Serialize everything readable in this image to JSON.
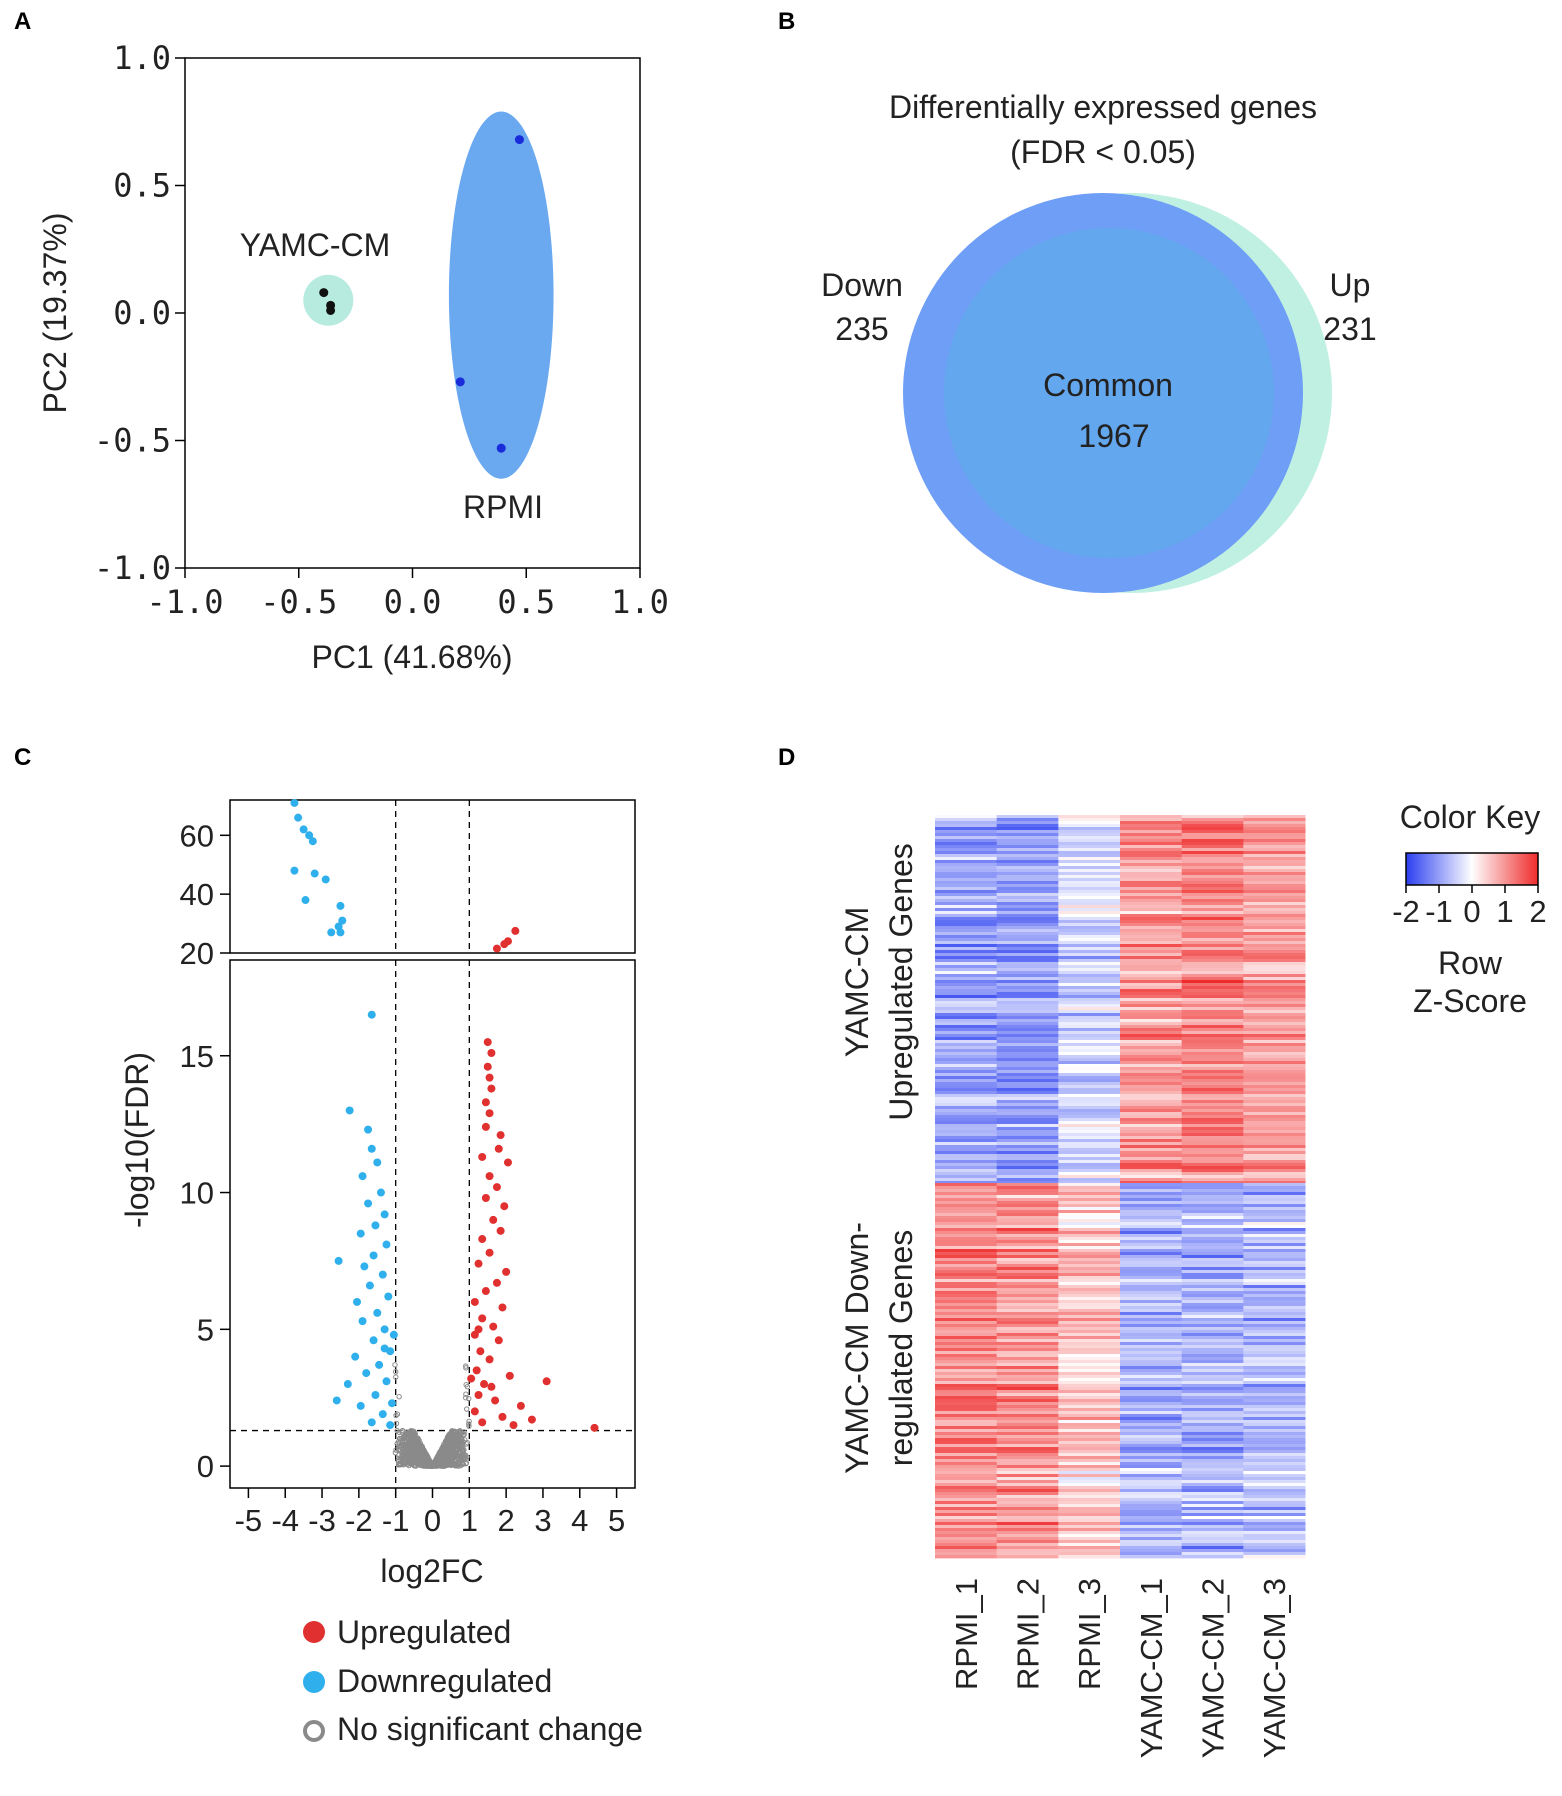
{
  "panels": {
    "a": "A",
    "b": "B",
    "c": "C",
    "d": "D"
  },
  "colors": {
    "rpmi_ellipse": "#6aa8f0",
    "yamc_circle": "#b7ebdf",
    "rpmi_point": "#1a2bd9",
    "yamc_point": "#111111",
    "venn_left": "#6e9ef5",
    "venn_right": "#bff0e2",
    "venn_common": "#63a7ee",
    "up": "#e0302f",
    "down": "#2fb0ec",
    "ns": "#8a8a8a",
    "heat_low": "#2b3ff0",
    "heat_mid": "#ffffff",
    "heat_high": "#ef2b2b"
  },
  "chart_data": [
    {
      "id": "pca",
      "type": "scatter",
      "title": "",
      "xlabel": "PC1 (41.68%)",
      "ylabel": "PC2 (19.37%)",
      "xlim": [
        -1.0,
        1.0
      ],
      "ylim": [
        -1.0,
        1.0
      ],
      "xticks": [
        -1.0,
        -0.5,
        0.0,
        0.5,
        1.0
      ],
      "xtick_labels": [
        "-1.0",
        "-0.5",
        "0.0",
        "0.5",
        "1.0"
      ],
      "yticks": [
        -1.0,
        -0.5,
        0.0,
        0.5,
        1.0
      ],
      "ytick_labels": [
        "-1.0",
        "-0.5",
        "0.0",
        "0.5",
        "1.0"
      ],
      "series": [
        {
          "name": "YAMC-CM",
          "label": "YAMC-CM",
          "points": [
            [
              -0.39,
              0.08
            ],
            [
              -0.36,
              0.03
            ],
            [
              -0.36,
              0.01
            ]
          ],
          "region": {
            "cx": -0.37,
            "cy": 0.05,
            "rx": 0.11,
            "ry": 0.1
          }
        },
        {
          "name": "RPMI",
          "label": "RPMI",
          "points": [
            [
              0.47,
              0.68
            ],
            [
              0.21,
              -0.27
            ],
            [
              0.39,
              -0.53
            ]
          ],
          "region": {
            "cx": 0.39,
            "cy": 0.07,
            "rx": 0.23,
            "ry": 0.72
          }
        }
      ]
    },
    {
      "id": "venn",
      "type": "venn",
      "title_line1": "Differentially expressed genes",
      "title_line2": "(FDR < 0.05)",
      "sets": [
        {
          "name": "Down",
          "label": "Down",
          "count": "235"
        },
        {
          "name": "Up",
          "label": "Up",
          "count": "231"
        }
      ],
      "common_label": "Common",
      "common_count": "1967"
    },
    {
      "id": "volcano",
      "type": "scatter",
      "xlabel": "log2FC",
      "ylabel": "-log10(FDR)",
      "xlim": [
        -5.5,
        5.5
      ],
      "ylim_lower": [
        -0.8,
        18.5
      ],
      "ylim_upper": [
        20,
        72
      ],
      "xticks": [
        -5,
        -4,
        -3,
        -2,
        -1,
        0,
        1,
        2,
        3,
        4,
        5
      ],
      "xtick_labels": [
        "-5",
        "-4",
        "-3",
        "-2",
        "-1",
        "0",
        "1",
        "2",
        "3",
        "4",
        "5"
      ],
      "yticks_lower": [
        0,
        5,
        10,
        15
      ],
      "ytick_labels_lower": [
        "0",
        "5",
        "10",
        "15"
      ],
      "yticks_upper": [
        20,
        40,
        60
      ],
      "ytick_labels_upper": [
        "20",
        "40",
        "60"
      ],
      "fc_thresholds": [
        -1,
        1
      ],
      "fdr_threshold": 1.3,
      "legend": [
        {
          "name": "up",
          "label": "Upregulated"
        },
        {
          "name": "down",
          "label": "Downregulated"
        },
        {
          "name": "ns",
          "label": "No significant change"
        }
      ],
      "upregulated": [
        [
          1.5,
          15.5
        ],
        [
          1.6,
          15.1
        ],
        [
          1.5,
          14.6
        ],
        [
          1.55,
          14.2
        ],
        [
          1.6,
          13.8
        ],
        [
          1.45,
          13.3
        ],
        [
          1.55,
          12.9
        ],
        [
          1.45,
          12.4
        ],
        [
          1.85,
          12.1
        ],
        [
          1.8,
          11.6
        ],
        [
          1.35,
          11.3
        ],
        [
          2.05,
          11.1
        ],
        [
          1.55,
          10.6
        ],
        [
          1.75,
          10.2
        ],
        [
          1.45,
          9.8
        ],
        [
          1.95,
          9.5
        ],
        [
          1.65,
          9.0
        ],
        [
          1.85,
          8.6
        ],
        [
          1.35,
          8.3
        ],
        [
          1.55,
          7.8
        ],
        [
          1.25,
          7.4
        ],
        [
          2.0,
          7.1
        ],
        [
          1.75,
          6.7
        ],
        [
          1.45,
          6.4
        ],
        [
          1.15,
          6.0
        ],
        [
          1.9,
          5.8
        ],
        [
          1.35,
          5.4
        ],
        [
          1.65,
          5.1
        ],
        [
          1.15,
          4.8
        ],
        [
          1.8,
          4.6
        ],
        [
          1.3,
          4.2
        ],
        [
          1.55,
          3.9
        ],
        [
          1.2,
          3.5
        ],
        [
          2.1,
          3.3
        ],
        [
          1.4,
          3.0
        ],
        [
          3.1,
          3.1
        ],
        [
          1.25,
          2.6
        ],
        [
          1.7,
          2.4
        ],
        [
          2.4,
          2.2
        ],
        [
          1.15,
          2.0
        ],
        [
          1.9,
          1.8
        ],
        [
          2.7,
          1.7
        ],
        [
          1.35,
          1.6
        ],
        [
          2.2,
          1.5
        ],
        [
          4.4,
          1.4
        ],
        [
          1.6,
          2.9
        ],
        [
          1.05,
          3.2
        ],
        [
          1.25,
          5.0
        ]
      ],
      "upregulated_upper": [
        [
          2.25,
          27.5
        ],
        [
          2.05,
          24.0
        ],
        [
          1.95,
          23.0
        ],
        [
          1.75,
          21.5
        ]
      ],
      "downregulated": [
        [
          -1.65,
          16.5
        ],
        [
          -2.25,
          13.0
        ],
        [
          -1.75,
          12.3
        ],
        [
          -1.65,
          11.6
        ],
        [
          -1.5,
          11.1
        ],
        [
          -1.9,
          10.6
        ],
        [
          -1.4,
          10.0
        ],
        [
          -1.75,
          9.6
        ],
        [
          -1.3,
          9.2
        ],
        [
          -1.55,
          8.8
        ],
        [
          -1.95,
          8.5
        ],
        [
          -1.25,
          8.1
        ],
        [
          -1.6,
          7.7
        ],
        [
          -1.85,
          7.3
        ],
        [
          -2.55,
          7.5
        ],
        [
          -1.35,
          7.0
        ],
        [
          -1.7,
          6.6
        ],
        [
          -1.2,
          6.2
        ],
        [
          -2.05,
          6.0
        ],
        [
          -1.5,
          5.6
        ],
        [
          -1.9,
          5.3
        ],
        [
          -1.3,
          5.0
        ],
        [
          -1.6,
          4.6
        ],
        [
          -1.15,
          4.2
        ],
        [
          -2.1,
          4.0
        ],
        [
          -1.45,
          3.7
        ],
        [
          -1.8,
          3.4
        ],
        [
          -1.25,
          3.1
        ],
        [
          -2.3,
          3.0
        ],
        [
          -1.55,
          2.6
        ],
        [
          -1.1,
          2.3
        ],
        [
          -1.95,
          2.2
        ],
        [
          -1.35,
          1.9
        ],
        [
          -2.6,
          2.4
        ],
        [
          -1.65,
          1.6
        ],
        [
          -1.15,
          1.5
        ],
        [
          -1.05,
          4.8
        ],
        [
          -1.3,
          4.3
        ]
      ],
      "downregulated_upper": [
        [
          -3.75,
          71
        ],
        [
          -3.65,
          66
        ],
        [
          -3.5,
          62
        ],
        [
          -3.35,
          60
        ],
        [
          -3.25,
          58
        ],
        [
          -3.75,
          48
        ],
        [
          -3.2,
          47
        ],
        [
          -2.9,
          45
        ],
        [
          -3.45,
          38
        ],
        [
          -2.5,
          36
        ],
        [
          -2.45,
          31
        ],
        [
          -2.55,
          29
        ],
        [
          -2.75,
          27
        ],
        [
          -2.5,
          27
        ]
      ]
    },
    {
      "id": "heatmap",
      "type": "heatmap",
      "columns": [
        "RPMI_1",
        "RPMI_2",
        "RPMI_3",
        "YAMC-CM_1",
        "YAMC-CM_2",
        "YAMC-CM_3"
      ],
      "row_groups": [
        {
          "name": "up",
          "label_line1": "YAMC-CM",
          "label_line2": "Upregulated Genes",
          "mean_z": [
            -0.9,
            -1.1,
            -0.4,
            1.0,
            1.2,
            0.9
          ]
        },
        {
          "name": "down",
          "label_line1": "YAMC-CM Down-",
          "label_line2": "regulated Genes",
          "mean_z": [
            1.1,
            1.0,
            0.5,
            -0.8,
            -0.8,
            -0.7
          ]
        }
      ],
      "color_key": {
        "title": "Color Key",
        "ticks": [
          -2,
          -1,
          0,
          1,
          2
        ],
        "tick_labels": [
          "-2",
          "-1",
          "0",
          "1",
          "2"
        ],
        "zlabel_line1": "Row",
        "zlabel_line2": "Z-Score"
      }
    }
  ]
}
